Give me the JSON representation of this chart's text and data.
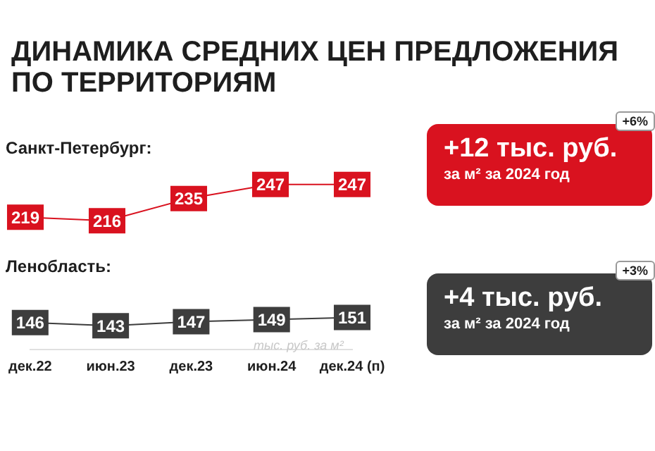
{
  "chart_data": [
    {
      "type": "line",
      "title": "ДИНАМИКА СРЕДНИХ ЦЕН ПРЕДЛОЖЕНИЯ ПО ТЕРРИТОРИЯМ",
      "categories": [
        null,
        null,
        null,
        null,
        null
      ],
      "series": [
        {
          "name": "Санкт-Петербург:",
          "color": "#d9121f",
          "values": [
            219,
            216,
            235,
            247,
            247
          ]
        }
      ],
      "data_labels": true,
      "tick_labels": false,
      "legend": false,
      "grid": false,
      "marker": "square",
      "line_style": "solid",
      "annotations": [
        "+12 тыс. руб.",
        "за м² за 2024 год",
        "+6%"
      ]
    },
    {
      "type": "line",
      "categories": [
        "дек.22",
        "июн.23",
        "дек.23",
        "июн.24",
        "дек.24 (п)"
      ],
      "series": [
        {
          "name": "Ленобласть:",
          "color": "#3d3d3d",
          "values": [
            146,
            143,
            147,
            149,
            151
          ]
        }
      ],
      "data_labels": true,
      "tick_labels": "x",
      "legend": false,
      "grid": false,
      "marker": "square",
      "line_style": "solid",
      "annotations": [
        "тыс. руб. за м²",
        "+4 тыс. руб.",
        "за м² за 2024 год",
        "+3%"
      ]
    }
  ]
}
